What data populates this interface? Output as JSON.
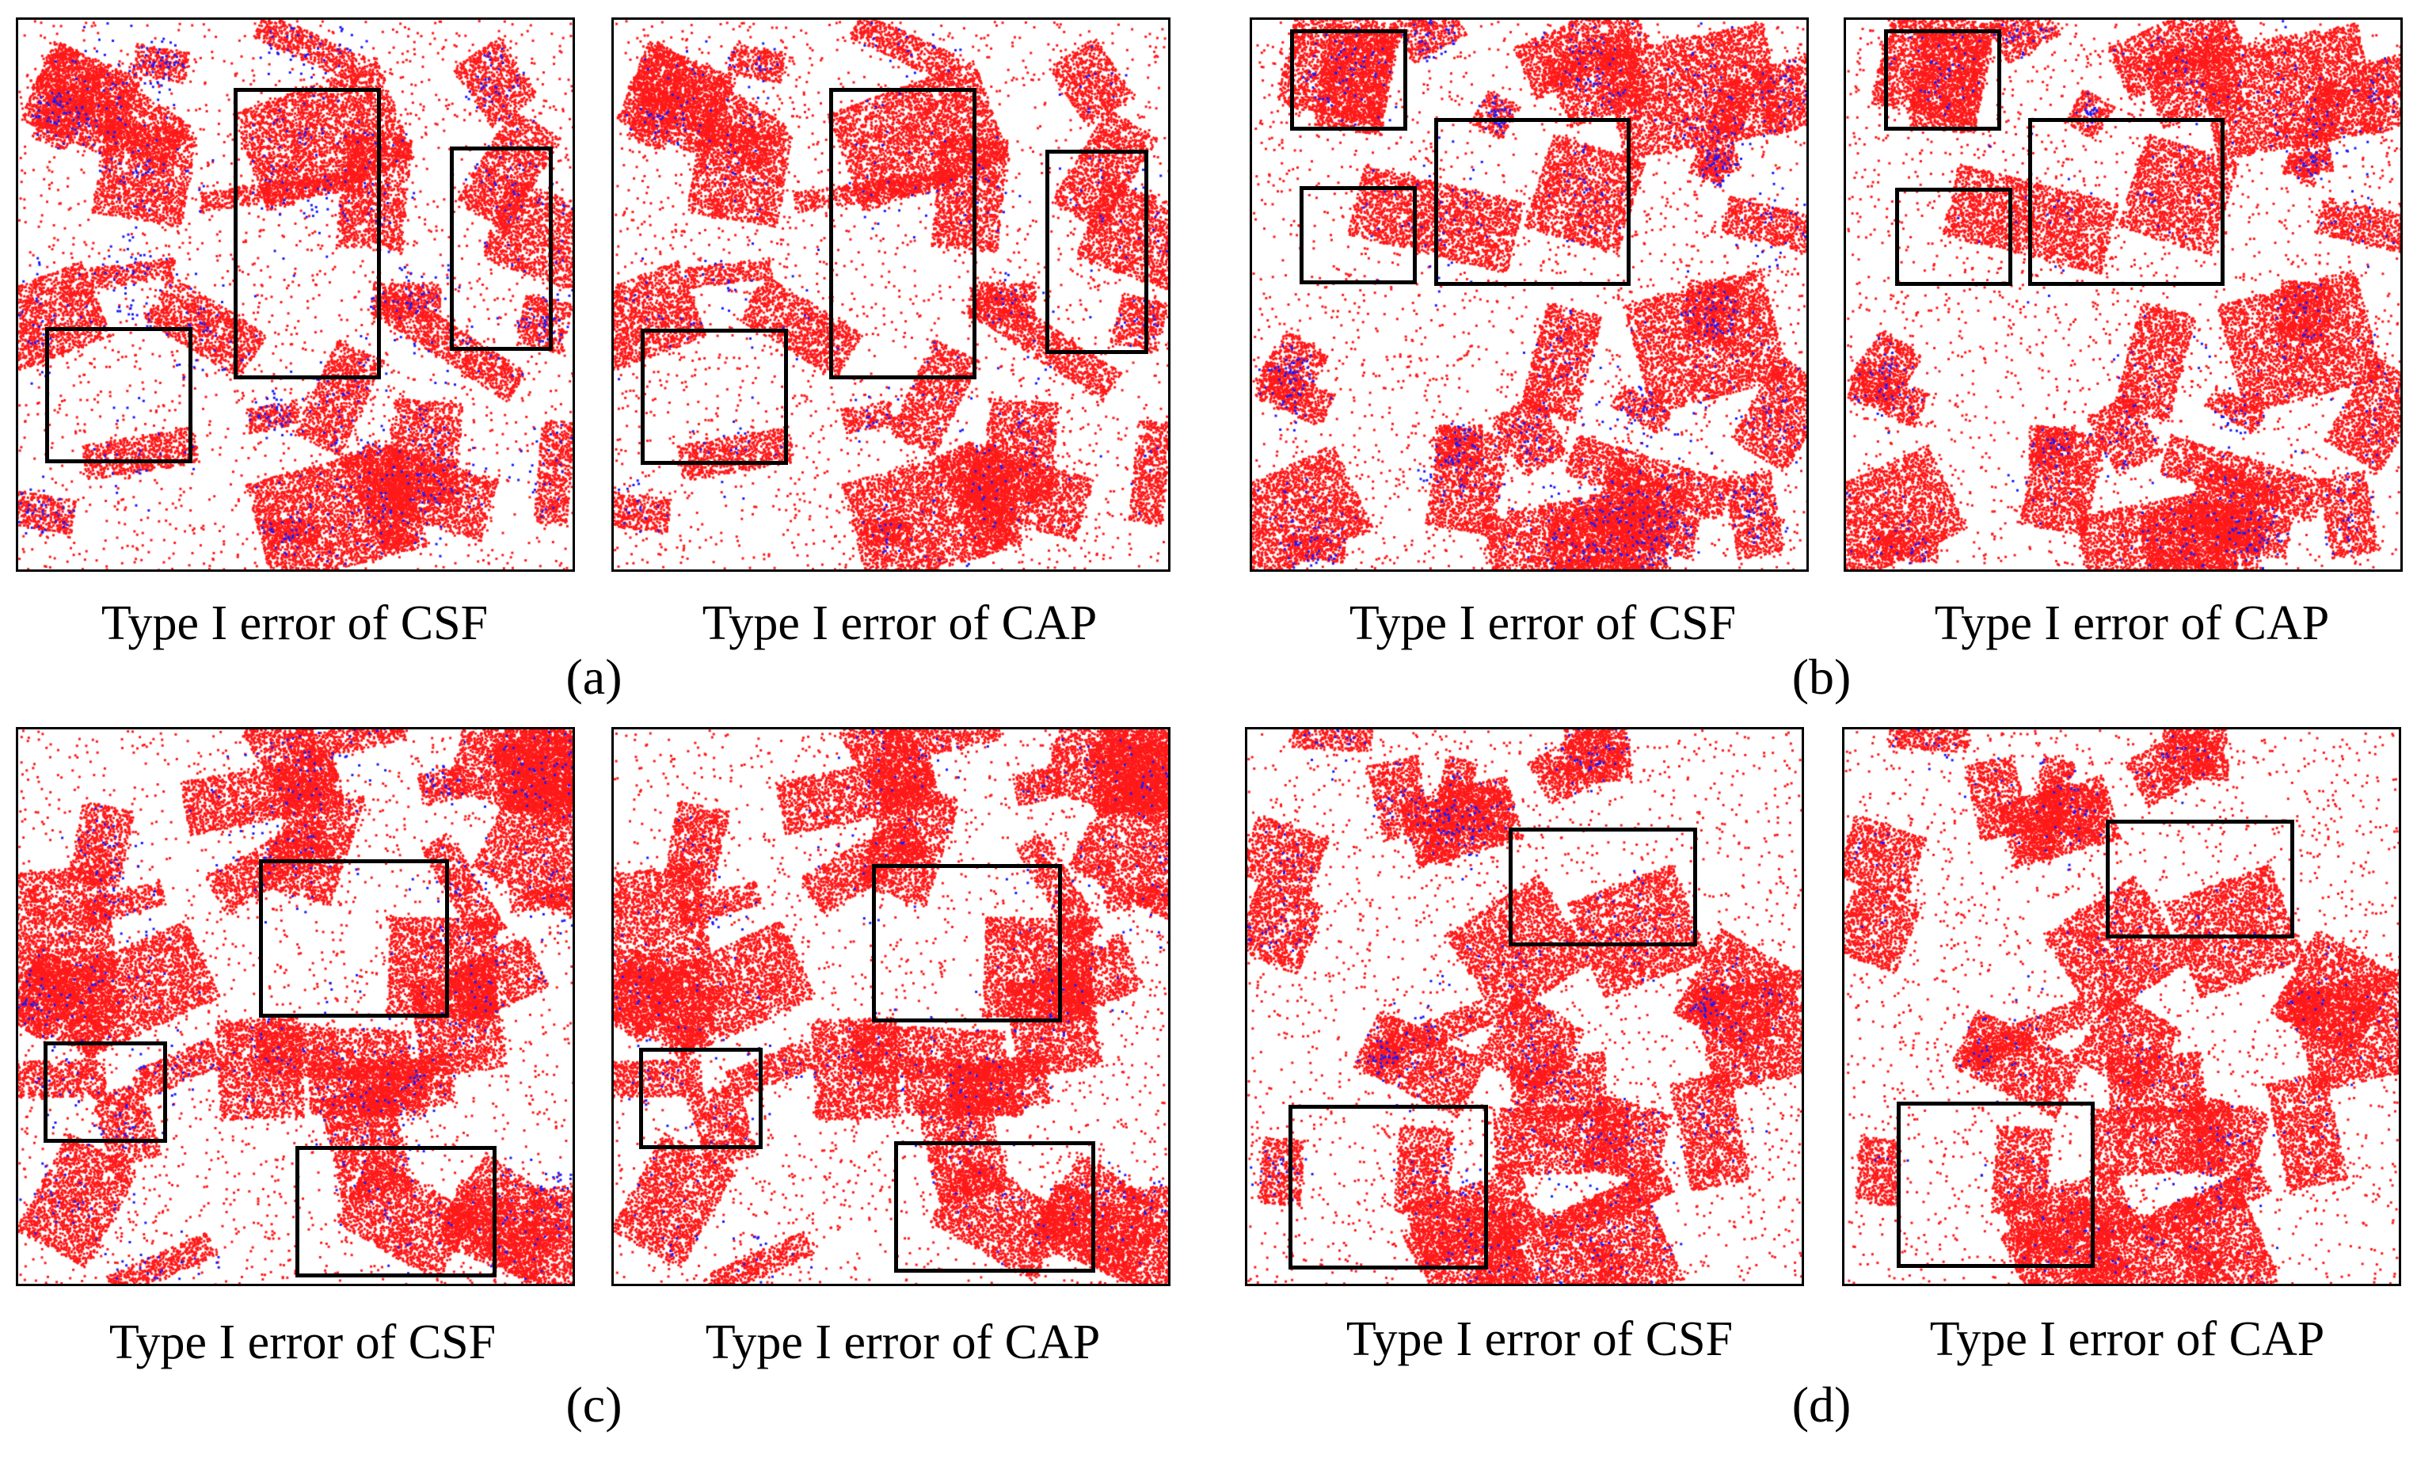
{
  "colors": {
    "error_points": "#ff1a1a",
    "ground_points": "#1a1aff",
    "background": "#ffffff",
    "boxes": "#000000"
  },
  "groups": [
    {
      "label": "(a)",
      "panels": [
        {
          "caption": "Type I error of CSF",
          "ground_fraction": 0.09
        },
        {
          "caption": "Type I error of CAP",
          "ground_fraction": 0.04
        }
      ]
    },
    {
      "label": "(b)",
      "panels": [
        {
          "caption": "Type I error of CSF",
          "ground_fraction": 0.1
        },
        {
          "caption": "Type I error of CAP",
          "ground_fraction": 0.06
        }
      ]
    },
    {
      "label": "(c)",
      "panels": [
        {
          "caption": "Type I error of CSF",
          "ground_fraction": 0.07
        },
        {
          "caption": "Type I error of CAP",
          "ground_fraction": 0.04
        }
      ]
    },
    {
      "label": "(d)",
      "panels": [
        {
          "caption": "Type I error of CSF",
          "ground_fraction": 0.06
        },
        {
          "caption": "Type I error of CAP",
          "ground_fraction": 0.03
        }
      ]
    }
  ]
}
